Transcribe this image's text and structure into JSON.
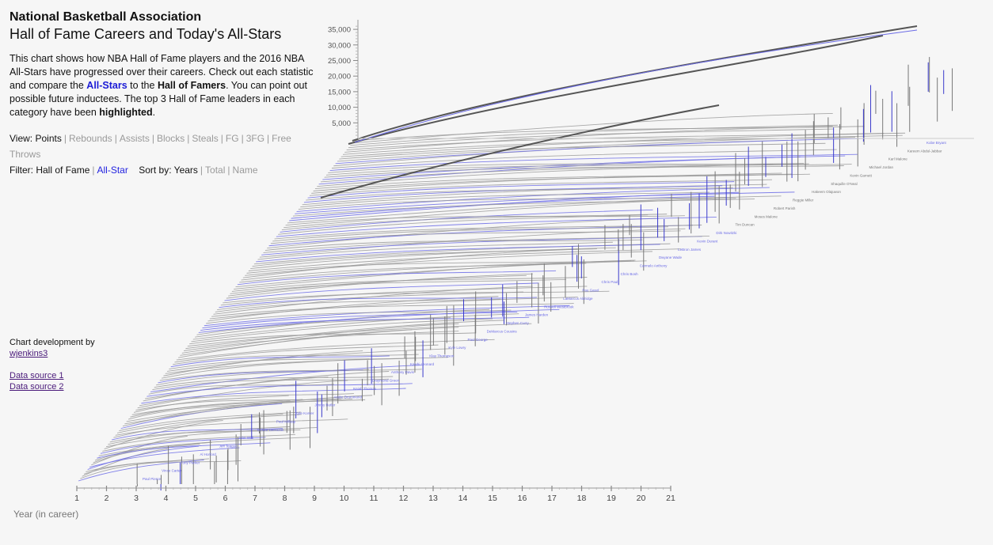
{
  "header": {
    "title": "National Basketball Association",
    "subtitle": "Hall of Fame Careers and Today's All-Stars"
  },
  "description": {
    "part1": "This chart shows how NBA Hall of Fame players and the 2016 NBA All-Stars have progressed over their careers. Check out each statistic and compare the ",
    "allstars": "All-Stars",
    "part2": " to the ",
    "hof": "Hall of Famers",
    "part3": ". You can point out possible future inductees. The top 3 Hall of Fame leaders in each category have been ",
    "highlighted": "highlighted",
    "part4": "."
  },
  "view": {
    "label": "View:",
    "options": [
      "Points",
      "Rebounds",
      "Assists",
      "Blocks",
      "Steals",
      "FG",
      "3FG",
      "Free Throws"
    ],
    "selected": "Points"
  },
  "filter": {
    "label": "Filter:",
    "options": [
      "Hall of Fame",
      "All-Star"
    ]
  },
  "sort": {
    "label": "Sort by:",
    "options": [
      "Years",
      "Total",
      "Name"
    ],
    "selected": "Years"
  },
  "credits": {
    "label": "Chart development by",
    "author": "wjenkins3",
    "source1": "Data source 1",
    "source2": "Data source 2"
  },
  "colors": {
    "hall_of_fame": "#9a9a9a",
    "all_star": "#6b6be6",
    "highlight": "#555555"
  },
  "chart_data": {
    "type": "line",
    "xlabel": "Year (in career)",
    "ylabel": "",
    "x_ticks": [
      1,
      2,
      3,
      4,
      5,
      6,
      7,
      8,
      9,
      10,
      11,
      12,
      13,
      14,
      15,
      16,
      17,
      18,
      19,
      20,
      21
    ],
    "xlim": [
      1,
      21
    ],
    "y_ticks": [
      "5,000",
      "10,000",
      "15,000",
      "20,000",
      "25,000",
      "30,000",
      "35,000"
    ],
    "ylim": [
      0,
      37000
    ],
    "highlighted": [
      {
        "name": "Kareem Abdul-Jabbar",
        "total": 38387,
        "years": 20
      },
      {
        "name": "Karl Malone",
        "total": 36928,
        "years": 19
      },
      {
        "name": "Michael Jordan",
        "total": 32292,
        "years": 15
      }
    ],
    "labeled_players": [
      {
        "name": "Kobe Bryant",
        "group": "all-star"
      },
      {
        "name": "Kareem Abdul-Jabbar",
        "group": "hof"
      },
      {
        "name": "Karl Malone",
        "group": "hof"
      },
      {
        "name": "Michael Jordan",
        "group": "hof"
      },
      {
        "name": "Kevin Garnett",
        "group": "hof"
      },
      {
        "name": "Shaquille O'Neal",
        "group": "hof"
      },
      {
        "name": "Hakeem Olajuwon",
        "group": "hof"
      },
      {
        "name": "Reggie Miller",
        "group": "hof"
      },
      {
        "name": "Robert Parish",
        "group": "hof"
      },
      {
        "name": "Moses Malone",
        "group": "hof"
      },
      {
        "name": "Tim Duncan",
        "group": "hof"
      },
      {
        "name": "Dirk Nowitzki",
        "group": "all-star"
      },
      {
        "name": "Kevin Durant",
        "group": "all-star"
      },
      {
        "name": "LeBron James",
        "group": "all-star"
      },
      {
        "name": "Dwyane Wade",
        "group": "all-star"
      },
      {
        "name": "Carmelo Anthony",
        "group": "all-star"
      },
      {
        "name": "Chris Bosh",
        "group": "all-star"
      },
      {
        "name": "Chris Paul",
        "group": "all-star"
      },
      {
        "name": "Pau Gasol",
        "group": "all-star"
      },
      {
        "name": "LaMarcus Aldridge",
        "group": "all-star"
      },
      {
        "name": "Russell Westbrook",
        "group": "all-star"
      },
      {
        "name": "James Harden",
        "group": "all-star"
      },
      {
        "name": "Stephen Curry",
        "group": "all-star"
      },
      {
        "name": "DeMarcus Cousins",
        "group": "all-star"
      },
      {
        "name": "Paul George",
        "group": "all-star"
      },
      {
        "name": "Kyle Lowry",
        "group": "all-star"
      },
      {
        "name": "Klay Thompson",
        "group": "all-star"
      },
      {
        "name": "Kawhi Leonard",
        "group": "all-star"
      },
      {
        "name": "Anthony Davis",
        "group": "all-star"
      },
      {
        "name": "Draymond Green",
        "group": "all-star"
      },
      {
        "name": "Isaiah Thomas",
        "group": "all-star"
      },
      {
        "name": "Andre Drummond",
        "group": "all-star"
      },
      {
        "name": "Jimmy Butler",
        "group": "all-star"
      },
      {
        "name": "Kyle Korver",
        "group": "all-star"
      },
      {
        "name": "Paul Millsap",
        "group": "all-star"
      },
      {
        "name": "DeMar DeRozan",
        "group": "all-star"
      },
      {
        "name": "John Wall",
        "group": "all-star"
      },
      {
        "name": "Jeff Teague",
        "group": "all-star"
      },
      {
        "name": "Al Horford",
        "group": "all-star"
      },
      {
        "name": "Tony Parker",
        "group": "all-star"
      },
      {
        "name": "Vince Carter",
        "group": "all-star"
      },
      {
        "name": "Paul Pierce",
        "group": "all-star"
      }
    ]
  }
}
